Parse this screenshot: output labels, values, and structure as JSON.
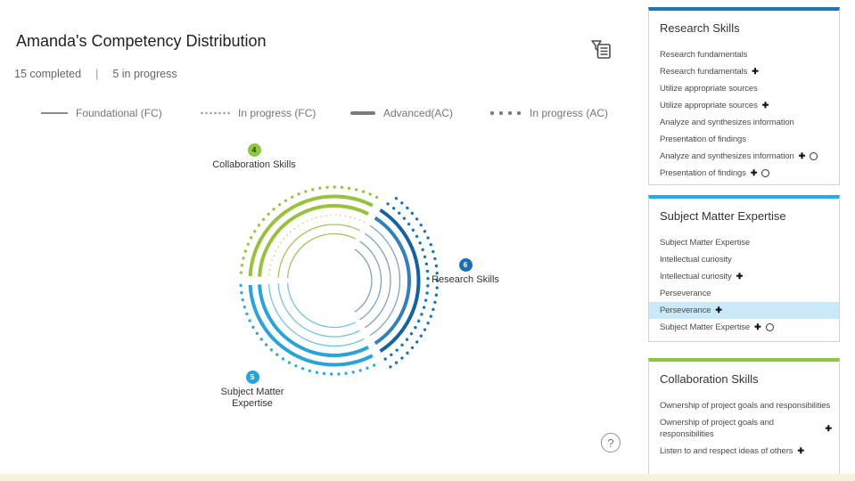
{
  "header": {
    "title": "Amanda's Competency Distribution",
    "completed": "15 completed",
    "separator": "|",
    "in_progress": "5 in progress"
  },
  "legend": {
    "items": [
      {
        "label": "Foundational (FC)",
        "style": "solid-thin"
      },
      {
        "label": "In progress (FC)",
        "style": "dotted-thin"
      },
      {
        "label": "Advanced(AC)",
        "style": "solid-thick"
      },
      {
        "label": "In progress (AC)",
        "style": "dotted-thick"
      }
    ]
  },
  "chart_data": {
    "type": "radial-arc",
    "description": "Concentric arc rings grouped in three 114-degree sectors; ring style encodes competency level: thin solid = Foundational completed, thick solid = Advanced completed, dotted = in progress",
    "ring_radii": [
      42,
      52.5,
      63,
      73.5,
      84,
      94.5,
      105,
      115.5
    ],
    "totals": {
      "completed": 15,
      "in_progress": 5
    },
    "sectors": [
      {
        "name": "Collaboration Skills",
        "count": 4,
        "start_deg": 63,
        "end_deg": 177,
        "badge_bg": "#8dc63f",
        "badge_fg": "#2e3b10",
        "rings": [
          {
            "slot": 6,
            "style": "dotted-thick",
            "color": "#9cc24b"
          },
          {
            "slot": 5,
            "style": "solid-thick",
            "color": "#97c13e"
          },
          {
            "slot": 4,
            "style": "solid-thick",
            "color": "#97c13e"
          },
          {
            "slot": 3,
            "style": "dotted-thin",
            "color": "#c3d9a0"
          },
          {
            "slot": 2,
            "style": "solid-thin",
            "color": "#a2c464"
          },
          {
            "slot": 1,
            "style": "solid-thin",
            "color": "#a2c464"
          }
        ]
      },
      {
        "name": "Research Skills",
        "count": 6,
        "start_deg": -57,
        "end_deg": 57,
        "badge_bg": "#1b6fb5",
        "badge_fg": "#ffffff",
        "rings": [
          {
            "slot": 7,
            "style": "dotted-thick",
            "color": "#2173af"
          },
          {
            "slot": 6,
            "style": "dotted-thick",
            "color": "#2173af"
          },
          {
            "slot": 5,
            "style": "solid-thick",
            "color": "#15629e"
          },
          {
            "slot": 4,
            "style": "solid-thick",
            "color": "#3381b8"
          },
          {
            "slot": 3,
            "style": "solid-thin",
            "color": "#7fa3bf"
          },
          {
            "slot": 2,
            "style": "solid-thin",
            "color": "#7fa3bf"
          },
          {
            "slot": 1,
            "style": "solid-thin",
            "color": "#7fa3bf"
          },
          {
            "slot": 0,
            "style": "solid-thin",
            "color": "#7fa3bf"
          }
        ]
      },
      {
        "name": "Subject Matter Expertise",
        "count": 5,
        "start_deg": 183,
        "end_deg": 297,
        "badge_bg": "#25a3da",
        "badge_fg": "#ffffff",
        "rings": [
          {
            "slot": 6,
            "style": "dotted-thick",
            "color": "#35a9d8"
          },
          {
            "slot": 5,
            "style": "solid-thick",
            "color": "#2aa4d6"
          },
          {
            "slot": 4,
            "style": "solid-thick",
            "color": "#2aa4d6"
          },
          {
            "slot": 3,
            "style": "solid-thin",
            "color": "#76c3de"
          },
          {
            "slot": 2,
            "style": "solid-thin",
            "color": "#76c3de"
          },
          {
            "slot": 1,
            "style": "solid-thin",
            "color": "#76c3de"
          }
        ]
      }
    ]
  },
  "sidebar": {
    "panels": [
      {
        "title": "Research Skills",
        "accent": "#1b75bb",
        "items": [
          {
            "label": "Research fundamentals",
            "icons": []
          },
          {
            "label": "Research fundamentals",
            "icons": [
              "plus"
            ]
          },
          {
            "label": "Utilize appropriate sources",
            "icons": []
          },
          {
            "label": "Utilize appropriate sources",
            "icons": [
              "plus"
            ]
          },
          {
            "label": "Analyze and synthesizes information",
            "icons": []
          },
          {
            "label": "Presentation of findings",
            "icons": []
          },
          {
            "label": "Analyze and synthesizes information",
            "icons": [
              "plus",
              "circle"
            ]
          },
          {
            "label": "Presentation of findings",
            "icons": [
              "plus",
              "circle"
            ]
          }
        ]
      },
      {
        "title": "Subject Matter Expertise",
        "accent": "#29abe2",
        "items": [
          {
            "label": "Subject Matter Expertise",
            "icons": []
          },
          {
            "label": "Intellectual curiosity",
            "icons": []
          },
          {
            "label": "Intellectual curiosity",
            "icons": [
              "plus"
            ]
          },
          {
            "label": "Perseverance",
            "icons": []
          },
          {
            "label": "Perseverance",
            "icons": [
              "plus"
            ],
            "highlighted": true
          },
          {
            "label": "Subject Matter Expertise",
            "icons": [
              "plus",
              "circle"
            ]
          }
        ]
      },
      {
        "title": "Collaboration Skills",
        "accent": "#8dc63f",
        "items": [
          {
            "label": "Ownership of project goals and responsibilities",
            "icons": []
          },
          {
            "label": "Ownership of project goals and responsibilities",
            "icons": [
              "plus"
            ],
            "icons_right": true
          },
          {
            "label": "Listen to and respect ideas of others",
            "icons": [
              "plus"
            ]
          }
        ]
      }
    ]
  },
  "icons": {
    "plus_glyph": "✚",
    "help_glyph": "?"
  }
}
